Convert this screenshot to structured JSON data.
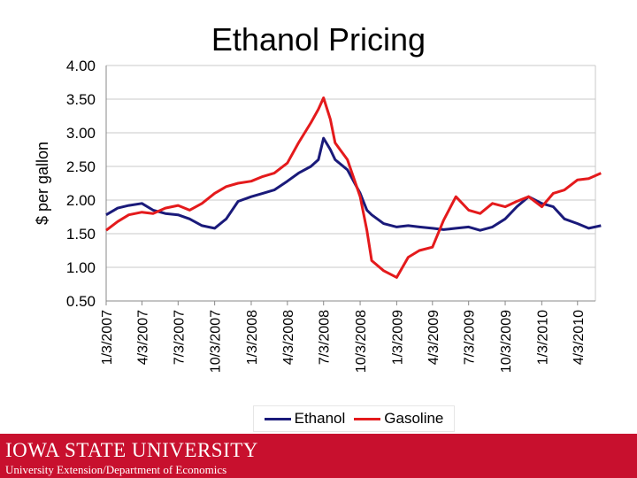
{
  "page": {
    "title": "Ethanol Pricing",
    "footer": {
      "logo_text": "IOWA STATE UNIVERSITY",
      "subtitle": "University Extension/Department of Economics",
      "color": "#c8102e"
    }
  },
  "chart_data": {
    "type": "line",
    "title": "Ethanol Pricing",
    "ylabel": "$ per gallon",
    "xlabel": "",
    "ylim": [
      0.5,
      4.0
    ],
    "y_ticks": [
      "4.00",
      "3.50",
      "3.00",
      "2.50",
      "2.00",
      "1.50",
      "1.00",
      "0.50"
    ],
    "x_tick_labels": [
      "1/3/2007",
      "4/3/2007",
      "7/3/2007",
      "10/3/2007",
      "1/3/2008",
      "4/3/2008",
      "7/3/2008",
      "10/3/2008",
      "1/3/2009",
      "4/3/2009",
      "7/3/2009",
      "10/3/2009",
      "1/3/2010",
      "4/3/2010"
    ],
    "grid": true,
    "legend_position": "bottom",
    "series": [
      {
        "name": "Ethanol",
        "color": "#1a1a7a",
        "x": [
          "1/3/2007",
          "2/1/2007",
          "3/1/2007",
          "4/3/2007",
          "5/1/2007",
          "6/1/2007",
          "7/3/2007",
          "8/1/2007",
          "9/1/2007",
          "10/3/2007",
          "11/1/2007",
          "12/1/2007",
          "1/3/2008",
          "2/1/2008",
          "3/1/2008",
          "4/3/2008",
          "5/1/2008",
          "6/1/2008",
          "6/20/2008",
          "7/3/2008",
          "7/20/2008",
          "8/1/2008",
          "9/1/2008",
          "10/3/2008",
          "10/20/2008",
          "11/1/2008",
          "12/1/2008",
          "1/3/2009",
          "2/1/2009",
          "3/1/2009",
          "4/3/2009",
          "5/1/2009",
          "6/1/2009",
          "7/3/2009",
          "8/1/2009",
          "9/1/2009",
          "10/3/2009",
          "11/1/2009",
          "12/1/2009",
          "1/3/2010",
          "2/1/2010",
          "3/1/2010",
          "4/3/2010",
          "5/1/2010",
          "6/1/2010"
        ],
        "values": [
          1.78,
          1.88,
          1.92,
          1.95,
          1.85,
          1.8,
          1.78,
          1.72,
          1.62,
          1.58,
          1.72,
          1.98,
          2.05,
          2.1,
          2.15,
          2.28,
          2.4,
          2.5,
          2.6,
          2.92,
          2.75,
          2.6,
          2.45,
          2.1,
          1.85,
          1.78,
          1.65,
          1.6,
          1.62,
          1.6,
          1.58,
          1.56,
          1.58,
          1.6,
          1.55,
          1.6,
          1.72,
          1.9,
          2.05,
          1.95,
          1.9,
          1.72,
          1.65,
          1.58,
          1.62
        ]
      },
      {
        "name": "Gasoline",
        "color": "#e41a1c",
        "x": [
          "1/3/2007",
          "2/1/2007",
          "3/1/2007",
          "4/3/2007",
          "5/1/2007",
          "6/1/2007",
          "7/3/2007",
          "8/1/2007",
          "9/1/2007",
          "10/3/2007",
          "11/1/2007",
          "12/1/2007",
          "1/3/2008",
          "2/1/2008",
          "3/1/2008",
          "4/3/2008",
          "5/1/2008",
          "6/1/2008",
          "6/20/2008",
          "7/3/2008",
          "7/20/2008",
          "8/1/2008",
          "9/1/2008",
          "10/3/2008",
          "10/20/2008",
          "11/1/2008",
          "12/1/2008",
          "1/3/2009",
          "2/1/2009",
          "3/1/2009",
          "4/3/2009",
          "5/1/2009",
          "6/1/2009",
          "7/3/2009",
          "8/1/2009",
          "9/1/2009",
          "10/3/2009",
          "11/1/2009",
          "12/1/2009",
          "1/3/2010",
          "2/1/2010",
          "3/1/2010",
          "4/3/2010",
          "5/1/2010",
          "6/1/2010"
        ],
        "values": [
          1.55,
          1.68,
          1.78,
          1.82,
          1.8,
          1.88,
          1.92,
          1.85,
          1.95,
          2.1,
          2.2,
          2.25,
          2.28,
          2.35,
          2.4,
          2.55,
          2.85,
          3.15,
          3.35,
          3.52,
          3.2,
          2.85,
          2.6,
          2.05,
          1.55,
          1.1,
          0.95,
          0.85,
          1.15,
          1.25,
          1.3,
          1.7,
          2.05,
          1.85,
          1.8,
          1.95,
          1.9,
          1.98,
          2.05,
          1.9,
          2.1,
          2.15,
          2.3,
          2.32,
          2.4
        ]
      }
    ]
  }
}
